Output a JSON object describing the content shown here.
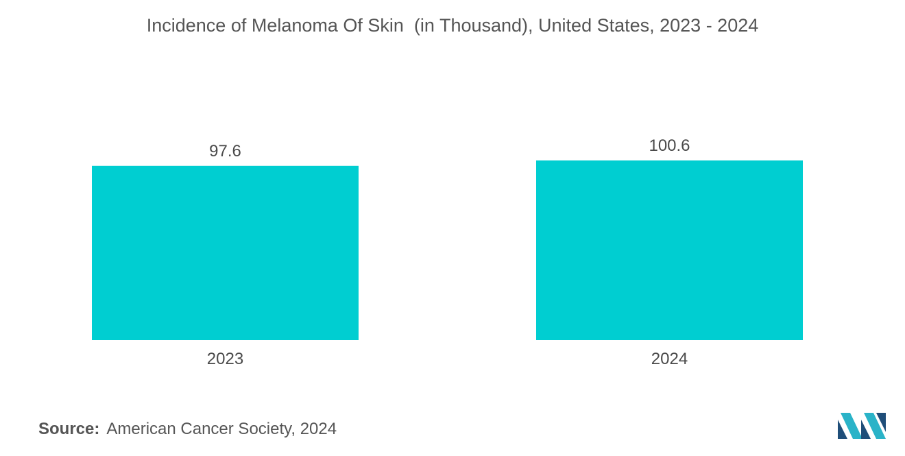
{
  "title": "Incidence of Melanoma Of Skin  (in Thousand), United States, 2023 - 2024",
  "source": {
    "label": "Source:",
    "text": "American Cancer Society, 2024"
  },
  "colors": {
    "bar": "#00CED1",
    "text": "#4a4a4a",
    "logo_dark": "#1f4e79",
    "logo_light": "#2ab3c8"
  },
  "logo_icon": "brand-logo-icon",
  "chart_data": {
    "type": "bar",
    "title": "Incidence of Melanoma Of Skin  (in Thousand), United States, 2023 - 2024",
    "categories": [
      "2023",
      "2024"
    ],
    "values": [
      97.6,
      100.6
    ],
    "value_labels": [
      "97.6",
      "100.6"
    ],
    "xlabel": "",
    "ylabel": "",
    "ylim": [
      0,
      100.6
    ],
    "grid": false,
    "legend": "none"
  }
}
